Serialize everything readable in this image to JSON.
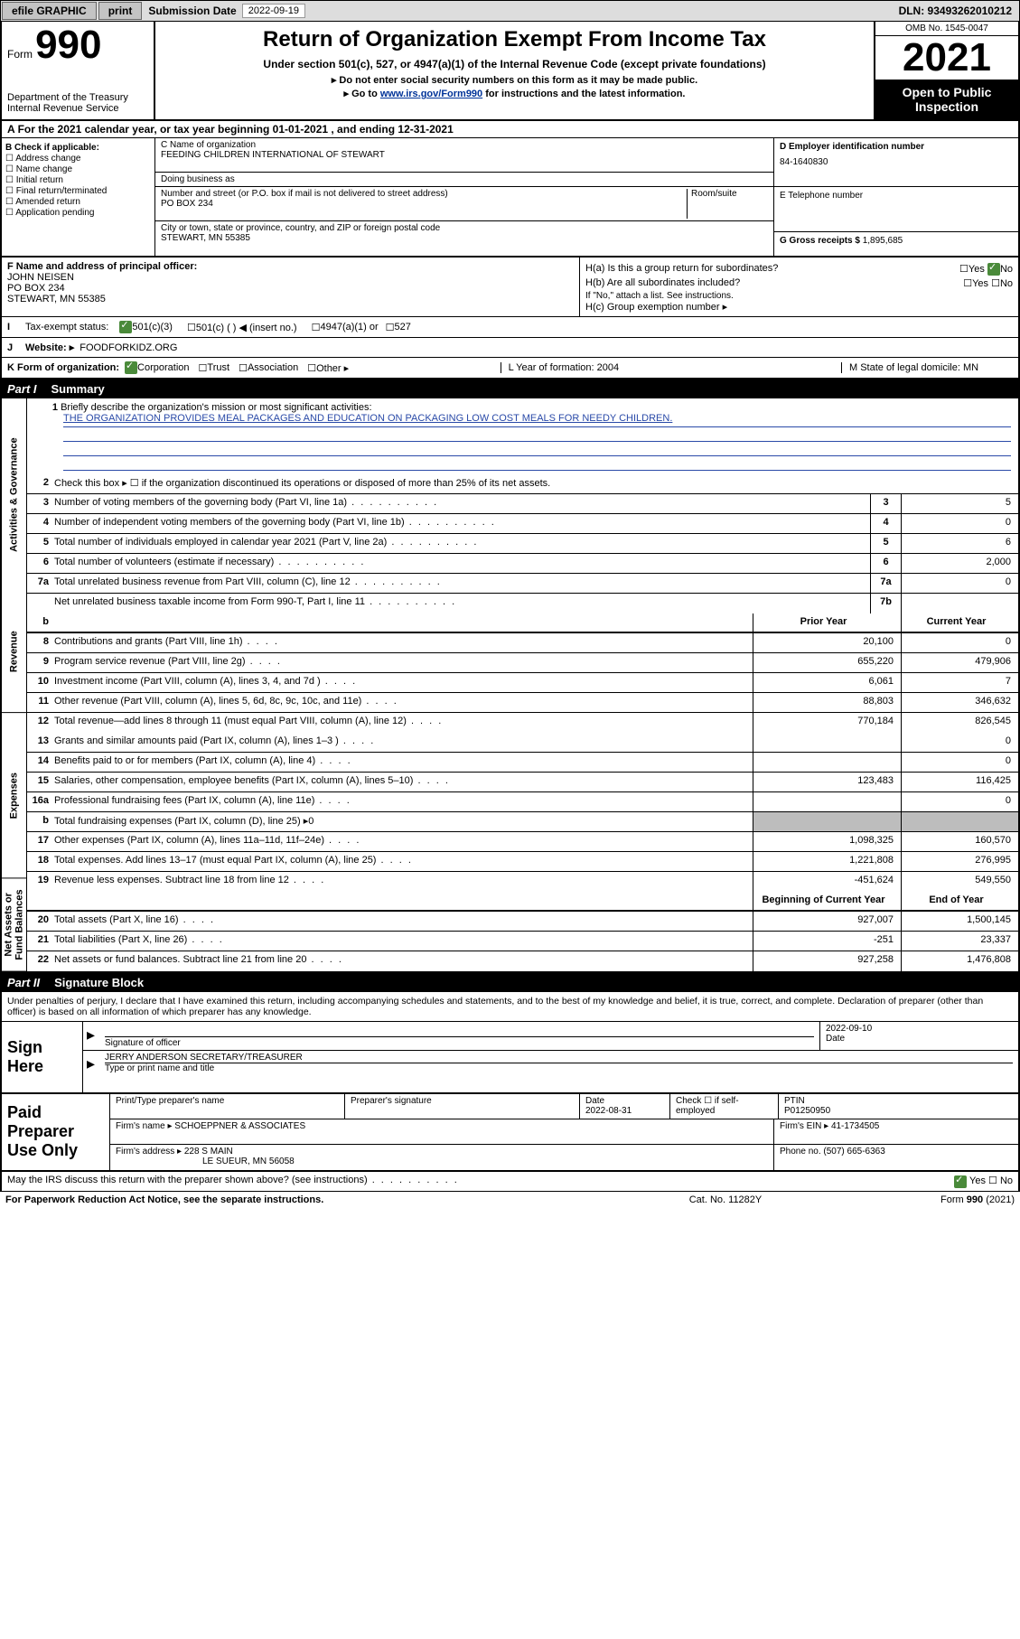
{
  "topbar": {
    "efile": "efile GRAPHIC",
    "print": "print",
    "sub_label": "Submission Date",
    "sub_date": "2022-09-19",
    "dln": "DLN: 93493262010212"
  },
  "header": {
    "form_word": "Form",
    "form_num": "990",
    "dept": "Department of the Treasury\nInternal Revenue Service",
    "title": "Return of Organization Exempt From Income Tax",
    "sub": "Under section 501(c), 527, or 4947(a)(1) of the Internal Revenue Code (except private foundations)",
    "line2": "Do not enter social security numbers on this form as it may be made public.",
    "line3_pre": "Go to ",
    "line3_link": "www.irs.gov/Form990",
    "line3_post": " for instructions and the latest information.",
    "omb": "OMB No. 1545-0047",
    "year": "2021",
    "inspection": "Open to Public Inspection"
  },
  "period": {
    "text": "For the 2021 calendar year, or tax year beginning 01-01-2021   , and ending 12-31-2021"
  },
  "box_b": {
    "label": "B Check if applicable:",
    "opts": [
      "Address change",
      "Name change",
      "Initial return",
      "Final return/terminated",
      "Amended return",
      "Application pending"
    ]
  },
  "box_c": {
    "label": "C Name of organization",
    "name": "FEEDING CHILDREN INTERNATIONAL OF STEWART",
    "dba_label": "Doing business as",
    "addr_label": "Number and street (or P.O. box if mail is not delivered to street address)",
    "room_label": "Room/suite",
    "addr": "PO BOX 234",
    "city_label": "City or town, state or province, country, and ZIP or foreign postal code",
    "city": "STEWART, MN  55385"
  },
  "box_d": {
    "label": "D Employer identification number",
    "value": "84-1640830"
  },
  "box_e": {
    "label": "E Telephone number",
    "value": ""
  },
  "box_g": {
    "label": "G Gross receipts $",
    "value": "1,895,685"
  },
  "box_f": {
    "label": "F  Name and address of principal officer:",
    "name": "JOHN NEISEN",
    "addr1": "PO BOX 234",
    "addr2": "STEWART, MN  55385"
  },
  "box_h": {
    "ha": "H(a)  Is this a group return for subordinates?",
    "hb": "H(b)  Are all subordinates included?",
    "hnote": "If \"No,\" attach a list. See instructions.",
    "hc": "H(c)  Group exemption number ▸",
    "yes": "Yes",
    "no": "No"
  },
  "taxex": {
    "label": "Tax-exempt status:",
    "o1": "501(c)(3)",
    "o2": "501(c) (  ) ◀ (insert no.)",
    "o3": "4947(a)(1) or",
    "o4": "527"
  },
  "website": {
    "label": "Website: ▸",
    "value": "FOODFORKIDZ.ORG"
  },
  "korg": {
    "label": "K Form of organization:",
    "o1": "Corporation",
    "o2": "Trust",
    "o3": "Association",
    "o4": "Other ▸",
    "l_label": "L Year of formation:",
    "l_val": "2004",
    "m_label": "M State of legal domicile:",
    "m_val": "MN"
  },
  "parts": {
    "p1": {
      "name": "Part I",
      "title": "Summary"
    },
    "p2": {
      "name": "Part II",
      "title": "Signature Block"
    }
  },
  "vtabs": [
    "Activities & Governance",
    "Revenue",
    "Expenses",
    "Net Assets or Fund Balances"
  ],
  "summary": {
    "l1_label": "Briefly describe the organization's mission or most significant activities:",
    "l1_text": "THE ORGANIZATION PROVIDES MEAL PACKAGES AND EDUCATION ON PACKAGING LOW COST MEALS FOR NEEDY CHILDREN.",
    "l2": "Check this box ▸ ☐  if the organization discontinued its operations or disposed of more than 25% of its net assets.",
    "head_prior": "Prior Year",
    "head_current": "Current Year",
    "head_boy": "Beginning of Current Year",
    "head_eoy": "End of Year",
    "rows_ag": [
      {
        "n": "3",
        "d": "Number of voting members of the governing body (Part VI, line 1a)",
        "c": "3",
        "v": "5"
      },
      {
        "n": "4",
        "d": "Number of independent voting members of the governing body (Part VI, line 1b)",
        "c": "4",
        "v": "0"
      },
      {
        "n": "5",
        "d": "Total number of individuals employed in calendar year 2021 (Part V, line 2a)",
        "c": "5",
        "v": "6"
      },
      {
        "n": "6",
        "d": "Total number of volunteers (estimate if necessary)",
        "c": "6",
        "v": "2,000"
      },
      {
        "n": "7a",
        "d": "Total unrelated business revenue from Part VIII, column (C), line 12",
        "c": "7a",
        "v": "0"
      },
      {
        "n": "",
        "d": "Net unrelated business taxable income from Form 990-T, Part I, line 11",
        "c": "7b",
        "v": ""
      }
    ],
    "rows_rev": [
      {
        "n": "8",
        "d": "Contributions and grants (Part VIII, line 1h)",
        "p": "20,100",
        "c": "0"
      },
      {
        "n": "9",
        "d": "Program service revenue (Part VIII, line 2g)",
        "p": "655,220",
        "c": "479,906"
      },
      {
        "n": "10",
        "d": "Investment income (Part VIII, column (A), lines 3, 4, and 7d )",
        "p": "6,061",
        "c": "7"
      },
      {
        "n": "11",
        "d": "Other revenue (Part VIII, column (A), lines 5, 6d, 8c, 9c, 10c, and 11e)",
        "p": "88,803",
        "c": "346,632"
      },
      {
        "n": "12",
        "d": "Total revenue—add lines 8 through 11 (must equal Part VIII, column (A), line 12)",
        "p": "770,184",
        "c": "826,545"
      }
    ],
    "rows_exp": [
      {
        "n": "13",
        "d": "Grants and similar amounts paid (Part IX, column (A), lines 1–3 )",
        "p": "",
        "c": "0"
      },
      {
        "n": "14",
        "d": "Benefits paid to or for members (Part IX, column (A), line 4)",
        "p": "",
        "c": "0"
      },
      {
        "n": "15",
        "d": "Salaries, other compensation, employee benefits (Part IX, column (A), lines 5–10)",
        "p": "123,483",
        "c": "116,425"
      },
      {
        "n": "16a",
        "d": "Professional fundraising fees (Part IX, column (A), line 11e)",
        "p": "",
        "c": "0"
      },
      {
        "n": "b",
        "d": "Total fundraising expenses (Part IX, column (D), line 25) ▸0",
        "p": "SHADE",
        "c": "SHADE"
      },
      {
        "n": "17",
        "d": "Other expenses (Part IX, column (A), lines 11a–11d, 11f–24e)",
        "p": "1,098,325",
        "c": "160,570"
      },
      {
        "n": "18",
        "d": "Total expenses. Add lines 13–17 (must equal Part IX, column (A), line 25)",
        "p": "1,221,808",
        "c": "276,995"
      },
      {
        "n": "19",
        "d": "Revenue less expenses. Subtract line 18 from line 12",
        "p": "-451,624",
        "c": "549,550"
      }
    ],
    "rows_na": [
      {
        "n": "20",
        "d": "Total assets (Part X, line 16)",
        "p": "927,007",
        "c": "1,500,145"
      },
      {
        "n": "21",
        "d": "Total liabilities (Part X, line 26)",
        "p": "-251",
        "c": "23,337"
      },
      {
        "n": "22",
        "d": "Net assets or fund balances. Subtract line 21 from line 20",
        "p": "927,258",
        "c": "1,476,808"
      }
    ]
  },
  "sig": {
    "declare": "Under penalties of perjury, I declare that I have examined this return, including accompanying schedules and statements, and to the best of my knowledge and belief, it is true, correct, and complete. Declaration of preparer (other than officer) is based on all information of which preparer has any knowledge.",
    "sign_here": "Sign Here",
    "sig_officer": "Signature of officer",
    "date_label": "Date",
    "date_val": "2022-09-10",
    "name": "JERRY ANDERSON  SECRETARY/TREASURER",
    "name_label": "Type or print name and title"
  },
  "prep": {
    "title": "Paid Preparer Use Only",
    "h1": "Print/Type preparer's name",
    "h2": "Preparer's signature",
    "h3": "Date",
    "h3v": "2022-08-31",
    "h4": "Check ☐ if self-employed",
    "h5": "PTIN",
    "h5v": "P01250950",
    "firm_label": "Firm's name    ▸",
    "firm": "SCHOEPPNER & ASSOCIATES",
    "ein_label": "Firm's EIN ▸",
    "ein": "41-1734505",
    "addr_label": "Firm's address ▸",
    "addr1": "228 S MAIN",
    "addr2": "LE SUEUR, MN  56058",
    "phone_label": "Phone no.",
    "phone": "(507) 665-6363"
  },
  "discuss": {
    "q": "May the IRS discuss this return with the preparer shown above? (see instructions)",
    "yes": "Yes",
    "no": "No"
  },
  "footer": {
    "left": "For Paperwork Reduction Act Notice, see the separate instructions.",
    "mid": "Cat. No. 11282Y",
    "right": "Form 990 (2021)"
  }
}
